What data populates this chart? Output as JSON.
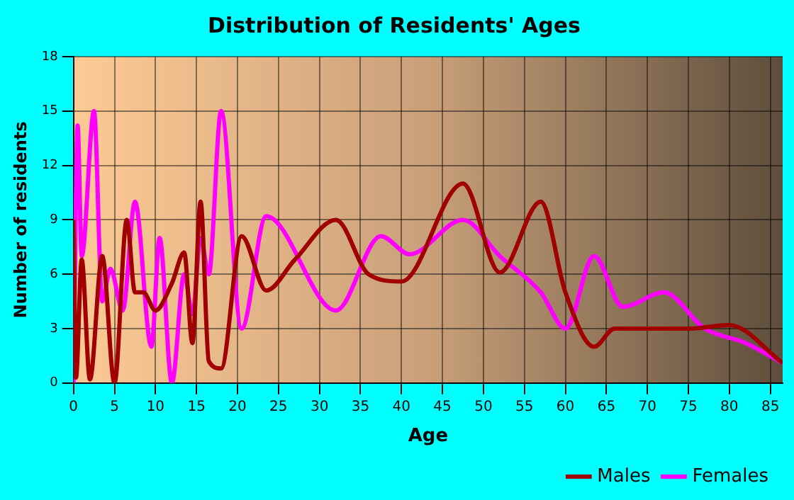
{
  "chart_data": {
    "type": "line",
    "title": "Distribution of Residents' Ages",
    "xlabel": "Age",
    "ylabel": "Number of residents",
    "xlim": [
      0,
      86.5
    ],
    "xticks": [
      0,
      5,
      10,
      15,
      20,
      25,
      30,
      35,
      40,
      45,
      50,
      55,
      60,
      65,
      70,
      75,
      80,
      85
    ],
    "ylim": [
      0,
      18
    ],
    "yticks": [
      0,
      3,
      6,
      9,
      12,
      15,
      18
    ],
    "grid": true,
    "legend": "bottom right",
    "marker": "none",
    "line_style": "solid",
    "series": [
      {
        "name": "Males",
        "color": "#a00000",
        "x": [
          0,
          0.3,
          1,
          2,
          3.5,
          5,
          6.5,
          7.5,
          8.5,
          10,
          12,
          13.5,
          14.5,
          15.5,
          16.5,
          18,
          20.5,
          23.5,
          27,
          32,
          36,
          40,
          47.5,
          52,
          57,
          60,
          63.5,
          66,
          75,
          80,
          86.5
        ],
        "values": [
          9,
          0.3,
          6.8,
          0.2,
          7,
          0,
          9,
          5,
          5,
          4,
          5.5,
          7.2,
          2.2,
          10,
          1.2,
          0.8,
          8.1,
          5.1,
          6.8,
          9,
          6,
          5.6,
          11,
          6.1,
          10,
          5,
          2,
          3,
          3,
          3.2,
          1.1
        ]
      },
      {
        "name": "Females",
        "color": "#ff00ff",
        "x": [
          0,
          0.5,
          1,
          2.5,
          3.5,
          4.5,
          6,
          7.5,
          9.5,
          10.5,
          12,
          13.5,
          14.5,
          15.5,
          16.5,
          18,
          20.5,
          23.5,
          32,
          37.5,
          41,
          47.5,
          52,
          57,
          60,
          63.5,
          67,
          72,
          77,
          82,
          86.5
        ],
        "values": [
          0,
          14.2,
          7,
          15,
          4.5,
          6.3,
          4,
          10,
          2,
          8,
          0,
          6,
          3.8,
          8,
          6,
          15,
          3,
          9.2,
          4,
          8.1,
          7.1,
          9,
          7,
          5,
          3,
          7,
          4.2,
          5,
          3,
          2.2,
          1.1
        ]
      }
    ]
  }
}
